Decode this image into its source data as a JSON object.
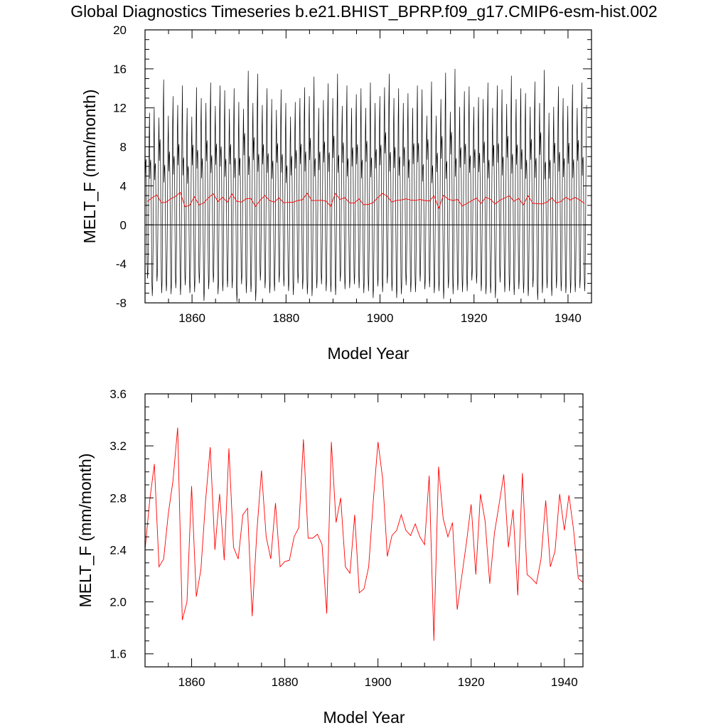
{
  "figure_title": "Global Diagnostics Timeseries b.e21.BHIST_BPRP.f09_g17.CMIP6-esm-hist.002",
  "colors": {
    "monthly_line": "#000000",
    "annual_line": "#ff0000",
    "axes": "#000000"
  },
  "chart_data": [
    {
      "type": "line",
      "xlabel": "Model Year",
      "ylabel": "MELT_F (mm/month)",
      "xlim": [
        1850,
        1945
      ],
      "ylim": [
        -8,
        20
      ],
      "xticks": [
        1860,
        1880,
        1900,
        1920,
        1940
      ],
      "yticks": [
        -8,
        -4,
        0,
        4,
        8,
        12,
        16,
        20
      ],
      "zero_line": 0,
      "series": [
        {
          "color": "#000000",
          "description_kind": "monthly",
          "annual_min": [
            -5.5,
            -7.3,
            -5.8,
            -7.0,
            -6.8,
            -7.1,
            -6.5,
            -7.2,
            -6.2,
            -7.0,
            -6.9,
            -6.0,
            -7.8,
            -6.6,
            -5.9,
            -7.1,
            -6.8,
            -6.4,
            -6.5,
            -7.9,
            -6.1,
            -7.0,
            -6.9,
            -7.8,
            -5.7,
            -6.5,
            -7.0,
            -6.8,
            -5.9,
            -6.3,
            -6.8,
            -7.2,
            -6.0,
            -6.6,
            -7.1,
            -7.3,
            -6.5,
            -6.1,
            -6.8,
            -6.9,
            -7.2,
            -5.8,
            -6.6,
            -6.5,
            -6.1,
            -6.5,
            -7.0,
            -6.8,
            -7.5,
            -6.3,
            -6.9,
            -6.0,
            -6.8,
            -7.5,
            -7.1,
            -6.2,
            -6.9,
            -6.9,
            -5.8,
            -6.6,
            -6.4,
            -7.0,
            -6.8,
            -7.6,
            -6.5,
            -7.1,
            -6.7,
            -6.9,
            -6.8,
            -5.7,
            -6.0,
            -6.8,
            -7.1,
            -7.0,
            -7.5,
            -5.9,
            -6.9,
            -6.8,
            -7.2,
            -6.6,
            -7.0,
            -7.3,
            -6.4,
            -7.7,
            -7.0,
            -6.5,
            -7.3,
            -6.5,
            -6.8,
            -7.0,
            -7.0,
            -6.9,
            -6.5,
            -6.8
          ],
          "annual_max": [
            11.5,
            12.1,
            11.0,
            14.9,
            11.2,
            13.2,
            12.3,
            14.3,
            12.0,
            11.1,
            14.1,
            13.0,
            12.5,
            14.6,
            12.2,
            14.3,
            13.8,
            11.9,
            14.0,
            12.6,
            11.9,
            15.8,
            12.5,
            15.5,
            12.3,
            14.0,
            12.9,
            11.8,
            13.9,
            12.5,
            11.1,
            12.6,
            13.0,
            14.1,
            13.2,
            15.2,
            12.0,
            12.8,
            14.5,
            13.0,
            15.5,
            12.2,
            14.3,
            12.0,
            13.4,
            14.0,
            12.0,
            14.6,
            12.5,
            13.2,
            14.1,
            15.5,
            13.0,
            14.0,
            12.5,
            13.5,
            12.0,
            14.3,
            13.9,
            11.2,
            14.7,
            11.2,
            12.9,
            15.6,
            11.6,
            16.0,
            12.1,
            13.7,
            14.2,
            12.1,
            13.1,
            12.9,
            14.6,
            12.0,
            14.3,
            13.9,
            12.4,
            15.3,
            12.9,
            14.0,
            13.5,
            12.1,
            14.7,
            12.5,
            15.9,
            11.5,
            12.1,
            14.2,
            13.0,
            12.2,
            14.4,
            12.0,
            14.6,
            12.3
          ]
        },
        {
          "color": "#ff0000",
          "description_kind": "annual",
          "x": [
            1850.5,
            1851.5,
            1852.5,
            1853.5,
            1854.5,
            1855.5,
            1856.5,
            1857.5,
            1858.5,
            1859.5,
            1860.5,
            1861.5,
            1862.5,
            1863.5,
            1864.5,
            1865.5,
            1866.5,
            1867.5,
            1868.5,
            1869.5,
            1870.5,
            1871.5,
            1872.5,
            1873.5,
            1874.5,
            1875.5,
            1876.5,
            1877.5,
            1878.5,
            1879.5,
            1880.5,
            1881.5,
            1882.5,
            1883.5,
            1884.5,
            1885.5,
            1886.5,
            1887.5,
            1888.5,
            1889.5,
            1890.5,
            1891.5,
            1892.5,
            1893.5,
            1894.5,
            1895.5,
            1896.5,
            1897.5,
            1898.5,
            1899.5,
            1900.5,
            1901.5,
            1902.5,
            1903.5,
            1904.5,
            1905.5,
            1906.5,
            1907.5,
            1908.5,
            1909.5,
            1910.5,
            1911.5,
            1912.5,
            1913.5,
            1914.5,
            1915.5,
            1916.5,
            1917.5,
            1918.5,
            1919.5,
            1920.5,
            1921.5,
            1922.5,
            1923.5,
            1924.5,
            1925.5,
            1926.5,
            1927.5,
            1928.5,
            1929.5,
            1930.5,
            1931.5,
            1932.5,
            1933.5,
            1934.5,
            1935.5,
            1936.5,
            1937.5,
            1938.5,
            1939.5,
            1940.5,
            1941.5,
            1942.5,
            1943.5
          ],
          "values": [
            2.4,
            2.78,
            3.06,
            2.27,
            2.33,
            2.68,
            2.93,
            3.34,
            1.86,
            2.0,
            2.89,
            2.04,
            2.25,
            2.78,
            3.19,
            2.4,
            2.83,
            2.32,
            3.18,
            2.42,
            2.33,
            2.67,
            2.72,
            1.89,
            2.54,
            3.01,
            2.5,
            2.33,
            2.76,
            2.27,
            2.31,
            2.32,
            2.5,
            2.57,
            3.25,
            2.49,
            2.49,
            2.52,
            2.44,
            1.91,
            3.23,
            2.61,
            2.8,
            2.27,
            2.22,
            2.67,
            2.07,
            2.1,
            2.27,
            2.78,
            3.23,
            2.95,
            2.35,
            2.51,
            2.55,
            2.67,
            2.55,
            2.51,
            2.6,
            2.5,
            2.44,
            2.97,
            1.7,
            3.04,
            2.64,
            2.5,
            2.61,
            1.94,
            2.2,
            2.46,
            2.75,
            2.21,
            2.83,
            2.62,
            2.14,
            2.53,
            2.75,
            2.98,
            2.42,
            2.71,
            2.05,
            2.99,
            2.21,
            2.18,
            2.14,
            2.33,
            2.78,
            2.27,
            2.39,
            2.83,
            2.55,
            2.82,
            2.55,
            2.2
          ]
        }
      ]
    },
    {
      "type": "line",
      "xlabel": "Model Year",
      "ylabel": "MELT_F (mm/month)",
      "xlim": [
        1850,
        1944
      ],
      "ylim": [
        1.5,
        3.6
      ],
      "xticks": [
        1860,
        1880,
        1900,
        1920,
        1940
      ],
      "yticks": [
        1.6,
        2.0,
        2.4,
        2.8,
        3.2,
        3.6
      ],
      "ytick_labels": [
        "1.6",
        "2.0",
        "2.4",
        "2.8",
        "3.2",
        "3.6"
      ],
      "series": [
        {
          "color": "#ff0000",
          "description_kind": "annual",
          "x": [
            1850.0,
            1851.0,
            1852.0,
            1853.0,
            1854.0,
            1855.0,
            1856.0,
            1857.0,
            1858.0,
            1859.0,
            1860.0,
            1861.0,
            1862.0,
            1863.0,
            1864.0,
            1865.0,
            1866.0,
            1867.0,
            1868.0,
            1869.0,
            1870.0,
            1871.0,
            1872.0,
            1873.0,
            1874.0,
            1875.0,
            1876.0,
            1877.0,
            1878.0,
            1879.0,
            1880.0,
            1881.0,
            1882.0,
            1883.0,
            1884.0,
            1885.0,
            1886.0,
            1887.0,
            1888.0,
            1889.0,
            1890.0,
            1891.0,
            1892.0,
            1893.0,
            1894.0,
            1895.0,
            1896.0,
            1897.0,
            1898.0,
            1899.0,
            1900.0,
            1901.0,
            1902.0,
            1903.0,
            1904.0,
            1905.0,
            1906.0,
            1907.0,
            1908.0,
            1909.0,
            1910.0,
            1911.0,
            1912.0,
            1913.0,
            1914.0,
            1915.0,
            1916.0,
            1917.0,
            1918.0,
            1919.0,
            1920.0,
            1921.0,
            1922.0,
            1923.0,
            1924.0,
            1925.0,
            1926.0,
            1927.0,
            1928.0,
            1929.0,
            1930.0,
            1931.0,
            1932.0,
            1933.0,
            1934.0,
            1935.0,
            1936.0,
            1937.0,
            1938.0,
            1939.0,
            1940.0,
            1941.0,
            1942.0,
            1943.0,
            1944.0
          ],
          "values": [
            2.4,
            2.78,
            3.06,
            2.27,
            2.33,
            2.68,
            2.93,
            3.34,
            1.86,
            2.0,
            2.89,
            2.04,
            2.25,
            2.78,
            3.19,
            2.4,
            2.83,
            2.32,
            3.18,
            2.42,
            2.33,
            2.67,
            2.72,
            1.89,
            2.54,
            3.01,
            2.5,
            2.33,
            2.76,
            2.27,
            2.31,
            2.32,
            2.5,
            2.57,
            3.25,
            2.49,
            2.49,
            2.52,
            2.44,
            1.91,
            3.23,
            2.61,
            2.8,
            2.27,
            2.22,
            2.67,
            2.07,
            2.1,
            2.27,
            2.78,
            3.23,
            2.95,
            2.35,
            2.51,
            2.55,
            2.67,
            2.55,
            2.51,
            2.6,
            2.5,
            2.44,
            2.97,
            1.7,
            3.04,
            2.64,
            2.5,
            2.61,
            1.94,
            2.2,
            2.46,
            2.75,
            2.21,
            2.83,
            2.62,
            2.14,
            2.53,
            2.75,
            2.98,
            2.42,
            2.71,
            2.05,
            2.99,
            2.21,
            2.18,
            2.14,
            2.33,
            2.78,
            2.27,
            2.39,
            2.83,
            2.55,
            2.82,
            2.55,
            2.18,
            2.15
          ]
        }
      ]
    }
  ]
}
